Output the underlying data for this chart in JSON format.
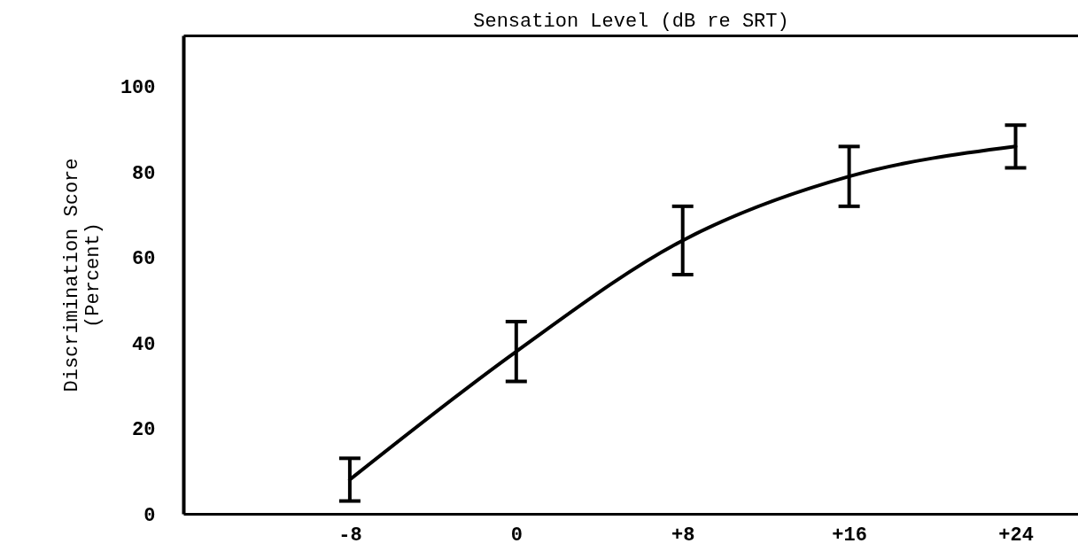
{
  "chart_data": {
    "type": "line",
    "xlabel": "Sensation Level (dB re SRT)",
    "ylabel": "Discrimination Score\n(Percent)",
    "x": [
      -8,
      0,
      8,
      16,
      24
    ],
    "series": [
      {
        "color": "#000000",
        "values": [
          8,
          38,
          64,
          79,
          86
        ],
        "errors": [
          5,
          7,
          8,
          7,
          5
        ]
      }
    ],
    "xlim": [
      -16,
      27
    ],
    "xticks": [
      {
        "value": -8,
        "label": "-8"
      },
      0,
      {
        "value": 8,
        "label": "+8"
      },
      {
        "value": 16,
        "label": "+16"
      },
      {
        "value": 24,
        "label": "+24"
      }
    ],
    "ylim": [
      0,
      112
    ],
    "yticks": [
      0,
      20,
      40,
      60,
      80,
      100
    ],
    "grid": false,
    "marker": "none",
    "line_style": "solid"
  }
}
